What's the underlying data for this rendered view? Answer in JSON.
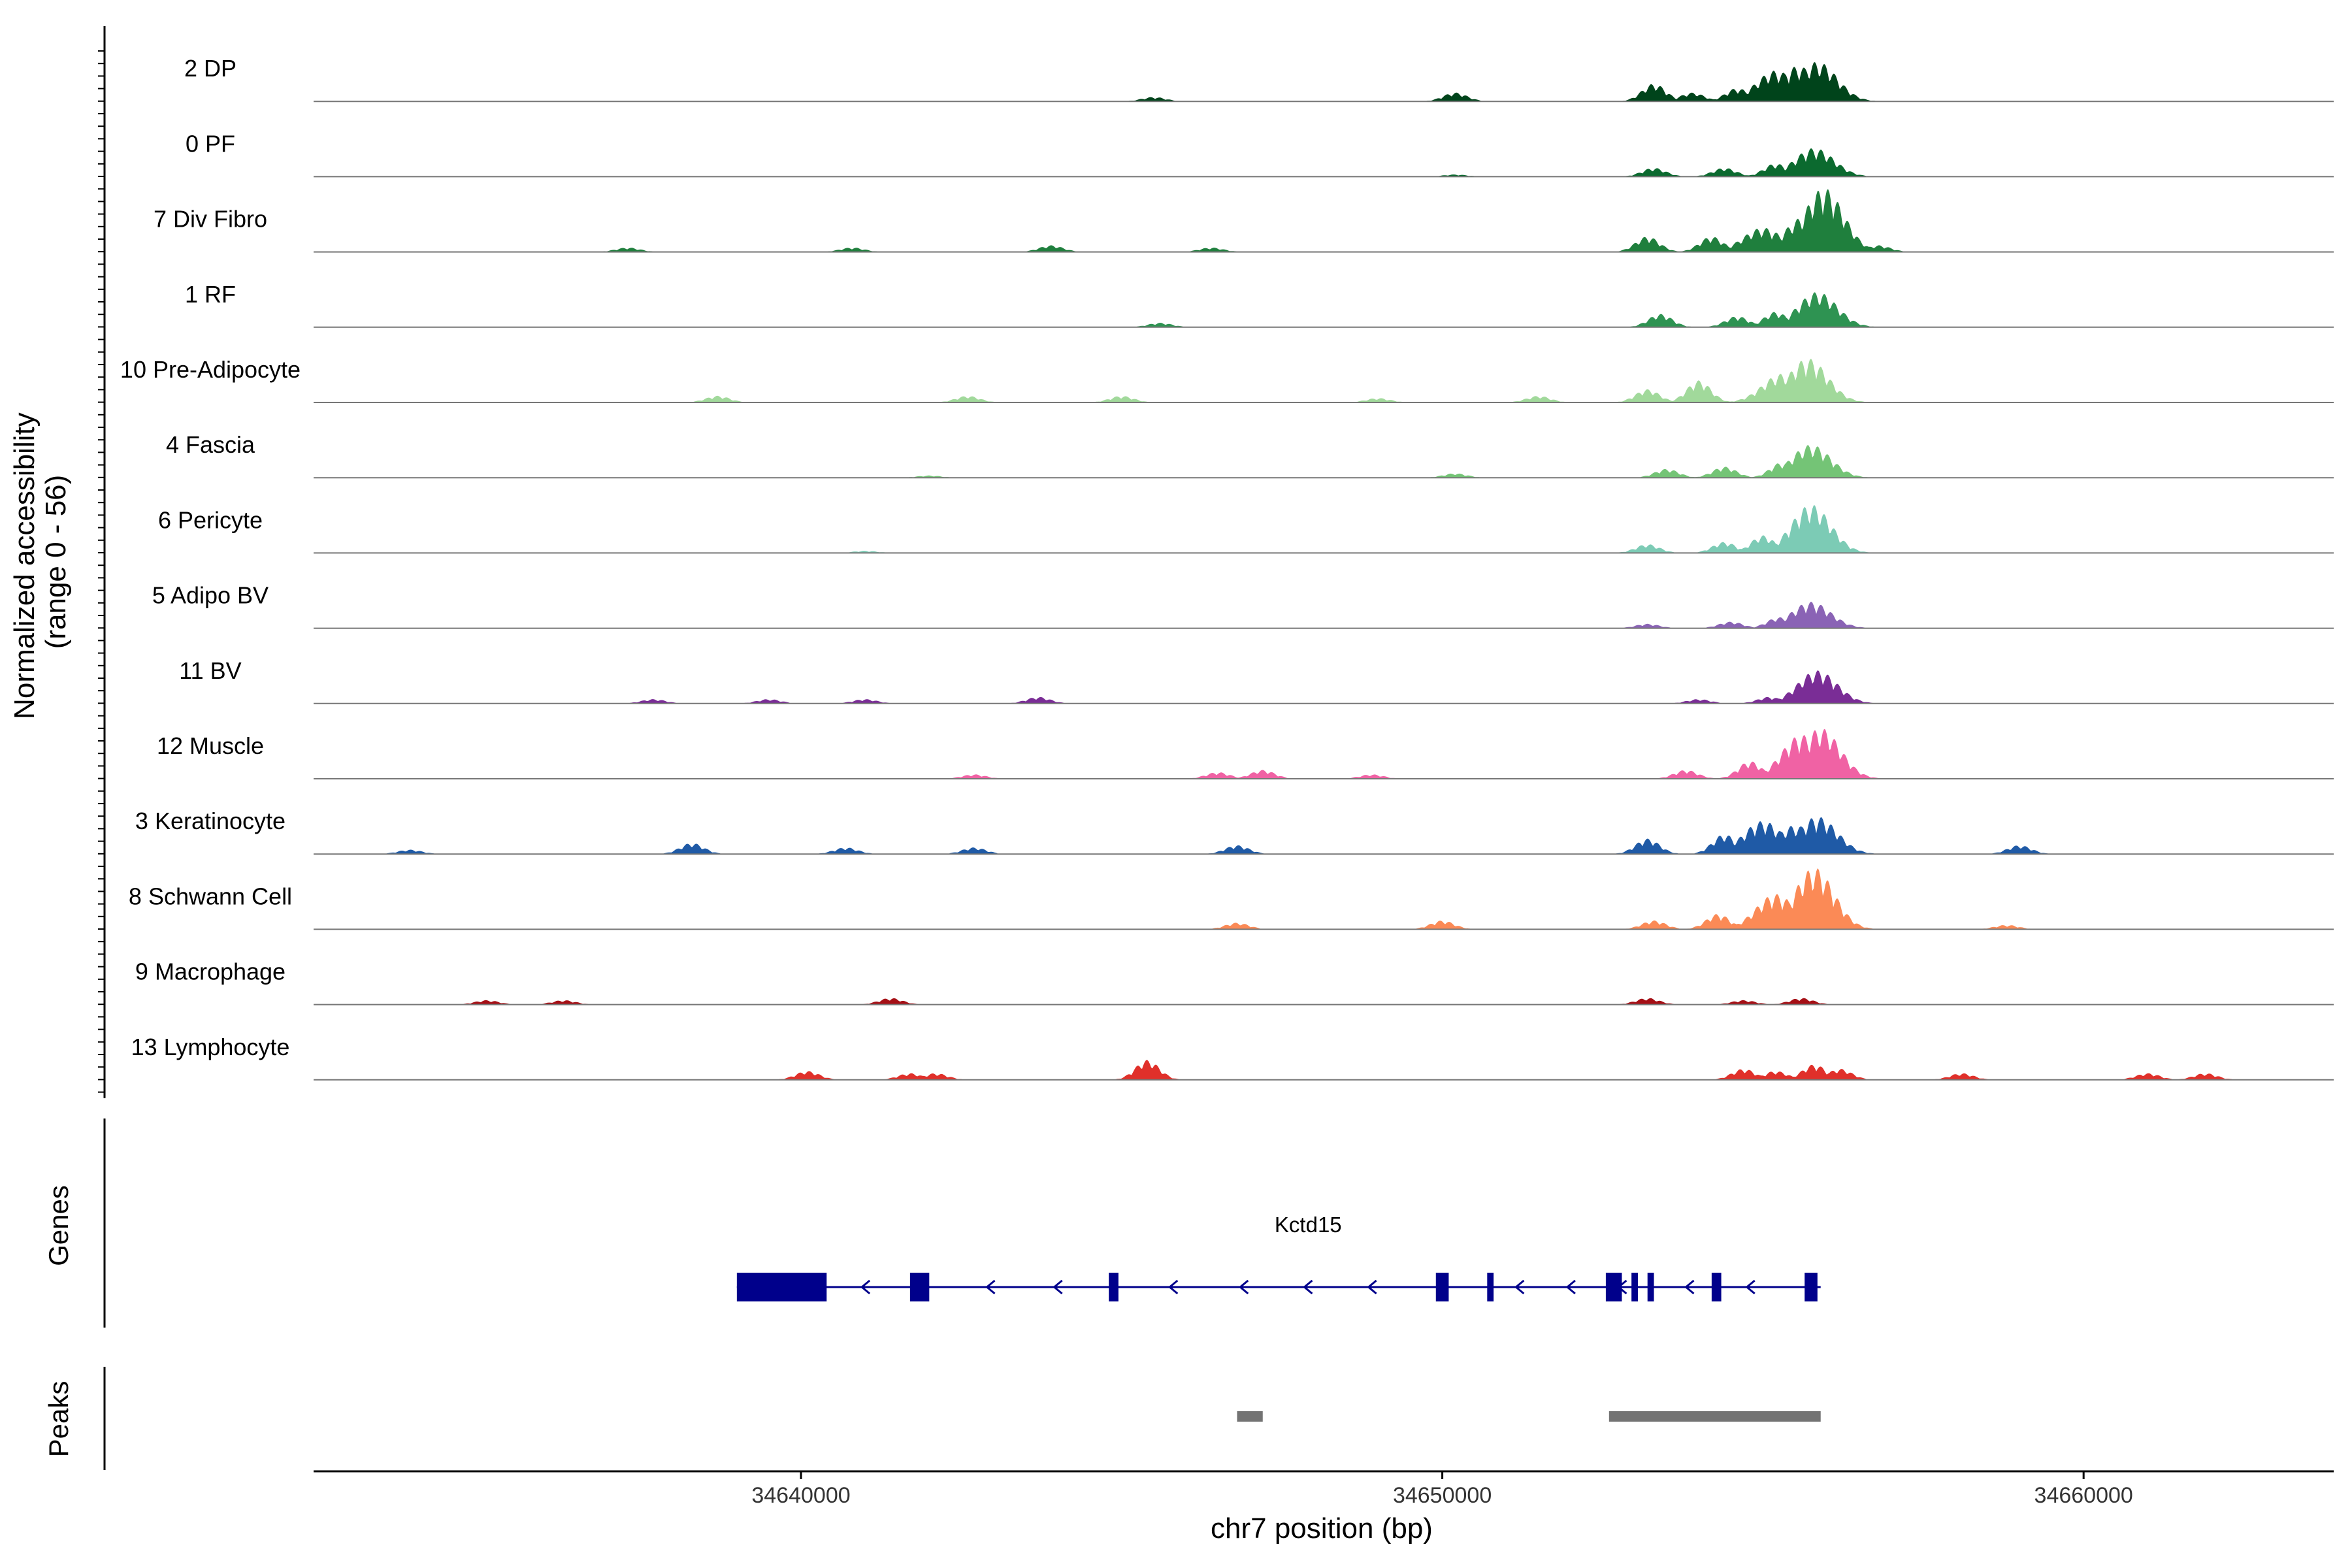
{
  "chart_data": {
    "type": "area",
    "xlabel": "chr7 position (bp)",
    "ylabel": "Normalized accessibility\n(range 0 - 56)",
    "ylabel_lines": [
      "Normalized accessibility",
      "(range 0 - 56)"
    ],
    "y_range": [
      0,
      56
    ],
    "xlim": [
      34632400,
      34663900
    ],
    "x_ticks": [
      34640000,
      34650000,
      34660000
    ],
    "x_tick_labels": [
      "34640000",
      "34650000",
      "34660000"
    ],
    "grid": false,
    "tracks": [
      {
        "name": "2 DP",
        "color": "#00441b",
        "peaks": [
          [
            34650200,
            4
          ],
          [
            34653300,
            8
          ],
          [
            34653900,
            4
          ],
          [
            34654600,
            6
          ],
          [
            34655200,
            14
          ],
          [
            34655550,
            16
          ],
          [
            34655850,
            18
          ],
          [
            34645500,
            2
          ]
        ]
      },
      {
        "name": "0 PF",
        "color": "#0b6a2f",
        "peaks": [
          [
            34653300,
            4
          ],
          [
            34654400,
            4
          ],
          [
            34655200,
            6
          ],
          [
            34655800,
            13
          ],
          [
            34650200,
            1
          ]
        ]
      },
      {
        "name": "7 Div Fibro",
        "color": "#1f7f3d",
        "peaks": [
          [
            34637300,
            2
          ],
          [
            34640800,
            2
          ],
          [
            34643900,
            3
          ],
          [
            34653200,
            7
          ],
          [
            34654200,
            7
          ],
          [
            34655000,
            11
          ],
          [
            34655650,
            16
          ],
          [
            34655950,
            29
          ],
          [
            34646400,
            2
          ],
          [
            34656800,
            3
          ]
        ]
      },
      {
        "name": "1 RF",
        "color": "#2e9352",
        "peaks": [
          [
            34653400,
            6
          ],
          [
            34654600,
            5
          ],
          [
            34655200,
            7
          ],
          [
            34655850,
            16
          ],
          [
            34645600,
            2
          ]
        ]
      },
      {
        "name": "10 Pre-Adipocyte",
        "color": "#a1d99b",
        "peaks": [
          [
            34654000,
            10
          ],
          [
            34655300,
            13
          ],
          [
            34655700,
            20
          ],
          [
            34653200,
            6
          ],
          [
            34645000,
            3
          ],
          [
            34642600,
            3
          ],
          [
            34638700,
            3
          ],
          [
            34651500,
            3
          ],
          [
            34649000,
            2
          ]
        ]
      },
      {
        "name": "4 Fascia",
        "color": "#74c476",
        "peaks": [
          [
            34653500,
            4
          ],
          [
            34654400,
            5
          ],
          [
            34655300,
            7
          ],
          [
            34655750,
            15
          ],
          [
            34650200,
            2
          ],
          [
            34642000,
            1
          ]
        ]
      },
      {
        "name": "6 Pericyte",
        "color": "#7ccbb5",
        "peaks": [
          [
            34653200,
            4
          ],
          [
            34654400,
            5
          ],
          [
            34655000,
            8
          ],
          [
            34655750,
            22
          ],
          [
            34641000,
            1
          ]
        ]
      },
      {
        "name": "5 Adipo BV",
        "color": "#8a63b5",
        "peaks": [
          [
            34653200,
            2
          ],
          [
            34654500,
            3
          ],
          [
            34655250,
            5
          ],
          [
            34655750,
            12
          ]
        ]
      },
      {
        "name": "11 BV",
        "color": "#7a2d96",
        "peaks": [
          [
            34655850,
            15
          ],
          [
            34641000,
            2
          ],
          [
            34643700,
            3
          ],
          [
            34637700,
            2
          ],
          [
            34639500,
            2
          ],
          [
            34654000,
            2
          ],
          [
            34655100,
            3
          ]
        ]
      },
      {
        "name": "12 Muscle",
        "color": "#f062a4",
        "peaks": [
          [
            34655600,
            20
          ],
          [
            34655900,
            23
          ],
          [
            34654800,
            8
          ],
          [
            34653800,
            4
          ],
          [
            34646500,
            3
          ],
          [
            34647200,
            4
          ],
          [
            34642700,
            2
          ],
          [
            34648900,
            2
          ]
        ]
      },
      {
        "name": "3 Keratinocyte",
        "color": "#1f5aa6",
        "peaks": [
          [
            34638300,
            5
          ],
          [
            34653200,
            7
          ],
          [
            34654400,
            9
          ],
          [
            34655000,
            15
          ],
          [
            34655500,
            13
          ],
          [
            34655850,
            17
          ],
          [
            34642700,
            3
          ],
          [
            34646800,
            4
          ],
          [
            34659000,
            4
          ],
          [
            34640700,
            3
          ],
          [
            34633900,
            2
          ]
        ]
      },
      {
        "name": "8 Schwann Cell",
        "color": "#fb8a56",
        "peaks": [
          [
            34655800,
            28
          ],
          [
            34655200,
            16
          ],
          [
            34654300,
            7
          ],
          [
            34653300,
            4
          ],
          [
            34650000,
            4
          ],
          [
            34646800,
            3
          ],
          [
            34658800,
            2
          ]
        ]
      },
      {
        "name": "9 Macrophage",
        "color": "#a50f15",
        "peaks": [
          [
            34653200,
            3
          ],
          [
            34654700,
            2
          ],
          [
            34655600,
            3
          ],
          [
            34641400,
            3
          ],
          [
            34636300,
            2
          ],
          [
            34635100,
            2
          ]
        ]
      },
      {
        "name": "13 Lymphocyte",
        "color": "#e0302a",
        "peaks": [
          [
            34645400,
            9
          ],
          [
            34640100,
            4
          ],
          [
            34641700,
            3
          ],
          [
            34642100,
            3
          ],
          [
            34654700,
            5
          ],
          [
            34655200,
            4
          ],
          [
            34655800,
            7
          ],
          [
            34656200,
            5
          ],
          [
            34658100,
            3
          ],
          [
            34661000,
            3
          ],
          [
            34661900,
            3
          ]
        ]
      }
    ],
    "gene": {
      "name": "Kctd15",
      "strand": "-",
      "color": "#00008b",
      "start": 34639000,
      "end": 34655900,
      "exons": [
        [
          34639000,
          34640400
        ],
        [
          34641700,
          34642000
        ],
        [
          34644800,
          34644950
        ],
        [
          34649900,
          34650100
        ],
        [
          34650700,
          34650800
        ],
        [
          34652550,
          34652800
        ],
        [
          34652950,
          34653050
        ],
        [
          34653200,
          34653300
        ],
        [
          34654200,
          34654350
        ],
        [
          34655650,
          34655850
        ]
      ],
      "arrows": [
        34641000,
        34642950,
        34644000,
        34645800,
        34646900,
        34647900,
        34648900,
        34651200,
        34652000,
        34652800,
        34653850,
        34654800
      ]
    },
    "peaks_track": [
      [
        34646800,
        34647200
      ],
      [
        34652600,
        34655900
      ]
    ],
    "panel_titles": {
      "genes": "Genes",
      "peaks": "Peaks"
    },
    "colors": {
      "axis": "#000000",
      "baseline": "#777777",
      "peak_bar": "#737373"
    }
  }
}
